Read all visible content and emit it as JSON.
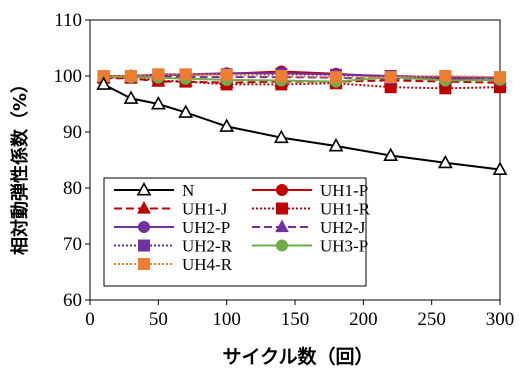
{
  "chart_data": {
    "type": "line",
    "title": "",
    "xlabel": "サイクル数（回）",
    "ylabel": "相対動弾性係数（%）",
    "xlim": [
      0,
      300
    ],
    "ylim": [
      60,
      110
    ],
    "x_ticks": [
      0,
      50,
      100,
      150,
      200,
      250,
      300
    ],
    "y_ticks": [
      60,
      70,
      80,
      90,
      100,
      110
    ],
    "grid": false,
    "legend_position": "lower-left",
    "legend_columns": 2,
    "series": [
      {
        "name": "N",
        "color": "#000000",
        "dash": "solid",
        "marker": "triangle-open",
        "x": [
          10,
          30,
          50,
          70,
          100,
          140,
          180,
          220,
          260,
          300
        ],
        "y": [
          98.5,
          96.0,
          95.0,
          93.5,
          91.0,
          89.0,
          87.5,
          85.8,
          84.5,
          83.3
        ]
      },
      {
        "name": "UH1-P",
        "color": "#c00000",
        "dash": "solid",
        "marker": "circle",
        "x": [
          10,
          30,
          50,
          70,
          100,
          140,
          180,
          220,
          260,
          300
        ],
        "y": [
          100.0,
          100.0,
          100.2,
          100.2,
          100.4,
          100.8,
          100.4,
          99.8,
          99.5,
          99.2
        ]
      },
      {
        "name": "UH1-J",
        "color": "#c00000",
        "dash": "dashed",
        "marker": "triangle",
        "x": [
          10,
          30,
          50,
          70,
          100,
          140,
          180,
          220,
          260,
          300
        ],
        "y": [
          99.6,
          99.6,
          99.0,
          99.0,
          98.8,
          99.0,
          99.0,
          99.2,
          99.0,
          98.8
        ]
      },
      {
        "name": "UH1-R",
        "color": "#c00000",
        "dash": "dotted",
        "marker": "square",
        "x": [
          10,
          30,
          50,
          70,
          100,
          140,
          180,
          220,
          260,
          300
        ],
        "y": [
          99.7,
          99.7,
          99.2,
          99.0,
          98.5,
          98.5,
          98.7,
          98.0,
          97.8,
          98.0
        ]
      },
      {
        "name": "UH2-P",
        "color": "#7030a0",
        "dash": "solid",
        "marker": "circle",
        "x": [
          10,
          30,
          50,
          70,
          100,
          140,
          180,
          220,
          260,
          300
        ],
        "y": [
          99.8,
          100.0,
          100.3,
          100.3,
          100.5,
          100.5,
          100.3,
          100.0,
          99.8,
          99.7
        ]
      },
      {
        "name": "UH2-J",
        "color": "#7030a0",
        "dash": "dashed",
        "marker": "triangle",
        "x": [
          10,
          30,
          50,
          70,
          100,
          140,
          180,
          220,
          260,
          300
        ],
        "y": [
          99.8,
          100.0,
          100.0,
          99.8,
          99.8,
          99.8,
          99.7,
          99.5,
          99.5,
          99.5
        ]
      },
      {
        "name": "UH2-R",
        "color": "#7030a0",
        "dash": "dotted",
        "marker": "square",
        "x": [
          10,
          30,
          50,
          70,
          100,
          140,
          180,
          220,
          260,
          300
        ],
        "y": [
          100.0,
          100.0,
          100.2,
          100.2,
          100.3,
          100.4,
          100.2,
          100.0,
          99.8,
          99.5
        ]
      },
      {
        "name": "UH3-P",
        "color": "#70ad47",
        "dash": "solid",
        "marker": "circle",
        "x": [
          10,
          30,
          50,
          70,
          100,
          140,
          180,
          220,
          260,
          300
        ],
        "y": [
          99.9,
          99.8,
          99.7,
          99.5,
          99.3,
          99.2,
          99.0,
          99.8,
          99.2,
          99.3
        ]
      },
      {
        "name": "UH4-R",
        "color": "#ed7d31",
        "dash": "dotted",
        "marker": "square",
        "x": [
          10,
          30,
          50,
          70,
          100,
          140,
          180,
          220,
          260,
          300
        ],
        "y": [
          100.0,
          100.0,
          100.3,
          100.3,
          100.2,
          100.0,
          99.8,
          99.8,
          100.0,
          99.8
        ]
      }
    ]
  }
}
